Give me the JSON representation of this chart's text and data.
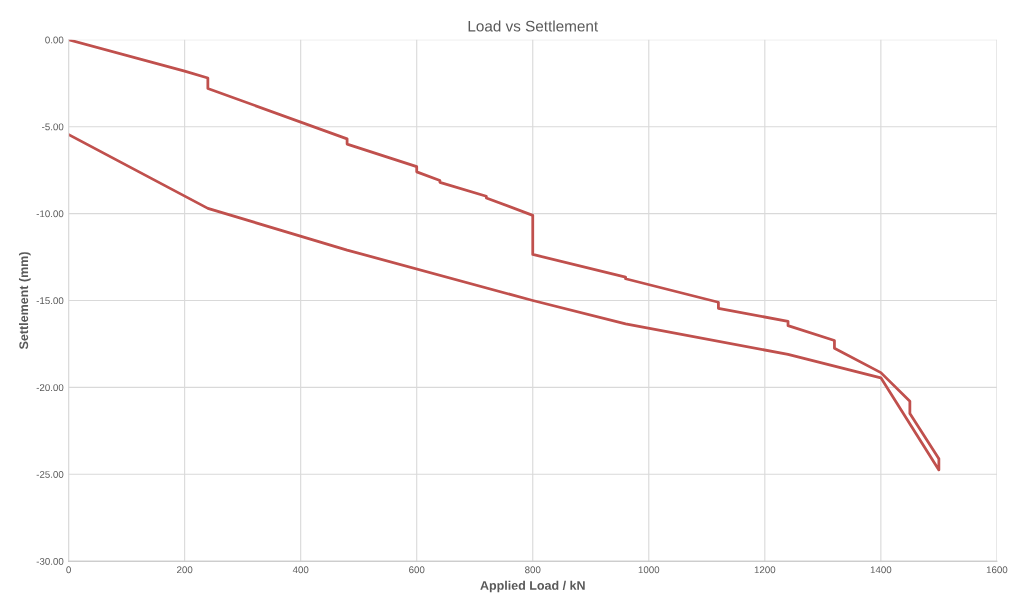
{
  "chart_data": {
    "type": "line",
    "title": "Load vs Settlement",
    "xlabel": "Applied Load / kN",
    "ylabel": "Settlement (mm)",
    "series": [
      {
        "color": "#c0504d",
        "x": [
          0,
          200,
          240,
          240,
          480,
          480,
          600,
          600,
          640,
          640,
          720,
          720,
          800,
          800,
          960,
          960,
          1120,
          1120,
          1240,
          1240,
          1320,
          1320,
          1400,
          1450,
          1450,
          1500,
          1500,
          1400,
          1240,
          960,
          800,
          480,
          240,
          0
        ],
        "values": [
          0,
          -1.8,
          -2.2,
          -2.8,
          -5.7,
          -6.0,
          -7.3,
          -7.6,
          -8.1,
          -8.2,
          -9.0,
          -9.1,
          -10.1,
          -12.35,
          -13.65,
          -13.75,
          -15.1,
          -15.45,
          -16.2,
          -16.45,
          -17.3,
          -17.75,
          -19.15,
          -20.8,
          -21.5,
          -24.1,
          -24.75,
          -19.45,
          -18.1,
          -16.35,
          -15.0,
          -12.1,
          -9.7,
          -5.45
        ]
      }
    ],
    "xlim": [
      0,
      1600
    ],
    "xticks": [
      0,
      200,
      400,
      600,
      800,
      1000,
      1200,
      1400,
      1600
    ],
    "ylim": [
      -30,
      0
    ],
    "yticks": [
      {
        "value": -30,
        "label": "-30.00"
      },
      {
        "value": -25,
        "label": "-25.00"
      },
      {
        "value": -20,
        "label": "-20.00"
      },
      {
        "value": -15,
        "label": "-15.00"
      },
      {
        "value": -10,
        "label": "-10.00"
      },
      {
        "value": -5,
        "label": "-5.00"
      },
      {
        "value": 0,
        "label": "0.00"
      }
    ],
    "grid": true,
    "marker": "none",
    "line_style": "solid"
  }
}
